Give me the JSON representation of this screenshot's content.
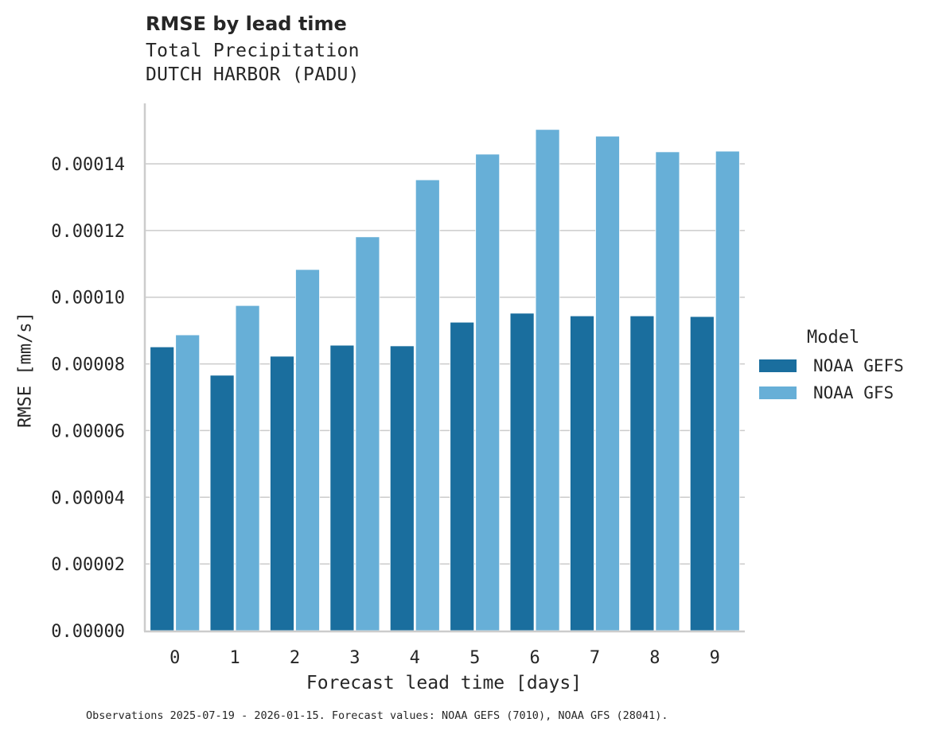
{
  "header": {
    "title": "RMSE by lead time",
    "subtitle_line1": "Total Precipitation",
    "subtitle_line2": "DUTCH HARBOR (PADU)"
  },
  "axes": {
    "xlabel": "Forecast lead time [days]",
    "ylabel": "RMSE [mm/s]"
  },
  "legend": {
    "title": "Model",
    "items": [
      {
        "label": "NOAA GEFS",
        "color": "#1a6e9e"
      },
      {
        "label": "NOAA GFS",
        "color": "#67afd7"
      }
    ]
  },
  "footer": {
    "text": "Observations 2025-07-19 - 2026-01-15. Forecast values: NOAA GEFS (7010), NOAA GFS (28041)."
  },
  "chart_data": {
    "type": "bar",
    "title": "RMSE by lead time",
    "subtitle": "Total Precipitation — DUTCH HARBOR (PADU)",
    "xlabel": "Forecast lead time [days]",
    "ylabel": "RMSE [mm/s]",
    "categories": [
      "0",
      "1",
      "2",
      "3",
      "4",
      "5",
      "6",
      "7",
      "8",
      "9"
    ],
    "series": [
      {
        "name": "NOAA GEFS",
        "color": "#1a6e9e",
        "values": [
          8.51e-05,
          7.66e-05,
          8.23e-05,
          8.56e-05,
          8.54e-05,
          9.25e-05,
          9.52e-05,
          9.44e-05,
          9.44e-05,
          9.42e-05
        ]
      },
      {
        "name": "NOAA GFS",
        "color": "#67afd7",
        "values": [
          8.87e-05,
          9.75e-05,
          0.0001083,
          0.0001181,
          0.0001352,
          0.0001429,
          0.0001503,
          0.0001483,
          0.0001436,
          0.0001438
        ]
      }
    ],
    "yticks": [
      0,
      2e-05,
      4e-05,
      6e-05,
      8e-05,
      0.0001,
      0.00012,
      0.00014
    ],
    "ytick_labels": [
      "0.00000",
      "0.00002",
      "0.00004",
      "0.00006",
      "0.00008",
      "0.00010",
      "0.00012",
      "0.00014"
    ],
    "ylim": [
      0,
      0.000158
    ],
    "grid": "horizontal",
    "legend_position": "right",
    "legend_title": "Model"
  }
}
